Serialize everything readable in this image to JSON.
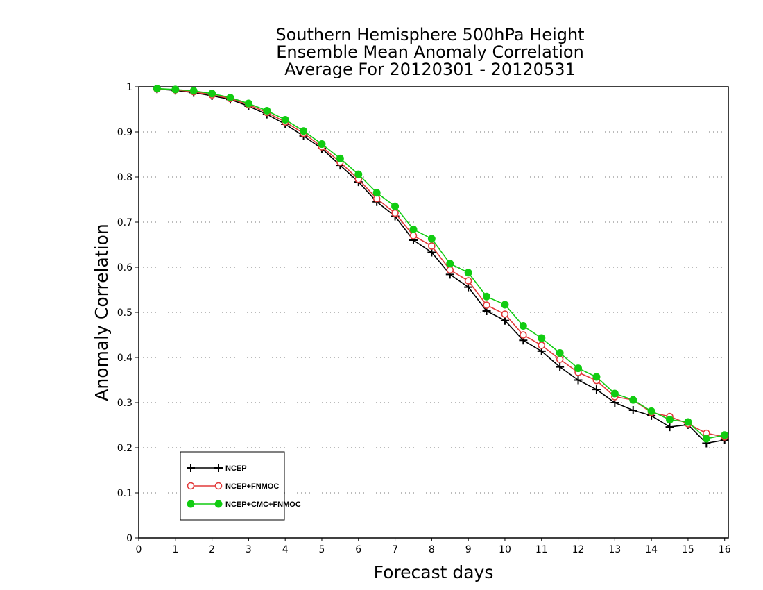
{
  "chart_data": {
    "type": "line",
    "title": [
      "Southern Hemisphere 500hPa Height",
      "Ensemble Mean Anomaly Correlation",
      "Average For 20120301 - 20120531"
    ],
    "xlabel": "Forecast days",
    "ylabel": "Anomaly Correlation",
    "xlim": [
      0,
      16.1
    ],
    "ylim": [
      0,
      1
    ],
    "xticks": [
      "0",
      "1",
      "2",
      "3",
      "4",
      "5",
      "6",
      "7",
      "8",
      "9",
      "10",
      "11",
      "12",
      "13",
      "14",
      "15",
      "16"
    ],
    "yticks": [
      "0",
      "0.1",
      "0.2",
      "0.3",
      "0.4",
      "0.5",
      "0.6",
      "0.7",
      "0.8",
      "0.9",
      "1"
    ],
    "grid": "horizontal dotted",
    "legend_position": "bottom-left",
    "x": [
      0.5,
      1,
      1.5,
      2,
      2.5,
      3,
      3.5,
      4,
      4.5,
      5,
      5.5,
      6,
      6.5,
      7,
      7.5,
      8,
      8.5,
      9,
      9.5,
      10,
      10.5,
      11,
      11.5,
      12,
      12.5,
      13,
      13.5,
      14,
      14.5,
      15,
      15.5,
      16
    ],
    "series": [
      {
        "name": "NCEP",
        "color": "#000000",
        "marker": "plus",
        "values": [
          0.995,
          0.992,
          0.987,
          0.98,
          0.972,
          0.957,
          0.939,
          0.917,
          0.891,
          0.863,
          0.826,
          0.789,
          0.745,
          0.713,
          0.66,
          0.633,
          0.584,
          0.556,
          0.503,
          0.482,
          0.438,
          0.414,
          0.379,
          0.35,
          0.329,
          0.3,
          0.283,
          0.271,
          0.246,
          0.251,
          0.21,
          0.217
        ]
      },
      {
        "name": "NCEP+FNMOC",
        "color": "#e23a3a",
        "marker": "open-circle",
        "values": [
          0.995,
          0.993,
          0.989,
          0.982,
          0.974,
          0.96,
          0.943,
          0.922,
          0.897,
          0.867,
          0.833,
          0.795,
          0.752,
          0.72,
          0.67,
          0.647,
          0.594,
          0.57,
          0.516,
          0.496,
          0.45,
          0.427,
          0.396,
          0.367,
          0.349,
          0.313,
          0.306,
          0.278,
          0.269,
          0.253,
          0.232,
          0.224
        ]
      },
      {
        "name": "NCEP+CMC+FNMOC",
        "color": "#11cc11",
        "marker": "filled-circle",
        "values": [
          0.996,
          0.994,
          0.991,
          0.985,
          0.976,
          0.963,
          0.947,
          0.927,
          0.902,
          0.873,
          0.841,
          0.806,
          0.765,
          0.735,
          0.684,
          0.663,
          0.608,
          0.588,
          0.535,
          0.517,
          0.47,
          0.443,
          0.41,
          0.376,
          0.357,
          0.32,
          0.306,
          0.281,
          0.262,
          0.257,
          0.22,
          0.228
        ]
      }
    ]
  }
}
